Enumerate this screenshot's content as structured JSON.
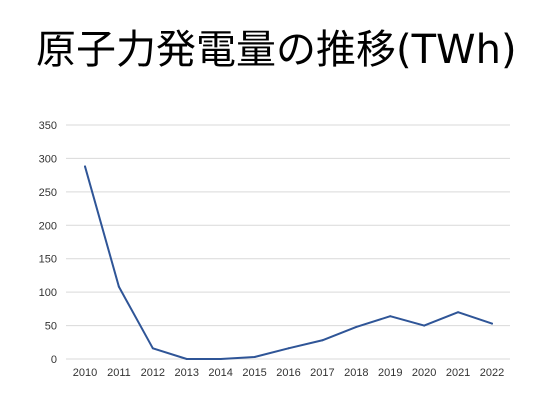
{
  "slide": {
    "title": "原子力発電量の推移(TWh)"
  },
  "colors": {
    "line": "#2f5597",
    "grid": "#d9d9d9",
    "tick_text": "#333333",
    "title": "#000000"
  },
  "chart_data": {
    "type": "line",
    "title": "原子力発電量の推移(TWh)",
    "xlabel": "",
    "ylabel": "",
    "x": [
      "2010",
      "2011",
      "2012",
      "2013",
      "2014",
      "2015",
      "2016",
      "2017",
      "2018",
      "2019",
      "2020",
      "2021",
      "2022"
    ],
    "series": [
      {
        "values": [
          288,
          108,
          16,
          0,
          0,
          3,
          16,
          28,
          48,
          64,
          50,
          70,
          53
        ]
      }
    ],
    "ylim": [
      0,
      350
    ],
    "yticks": [
      0,
      50,
      100,
      150,
      200,
      250,
      300,
      350
    ],
    "grid": true,
    "legend": "none"
  }
}
